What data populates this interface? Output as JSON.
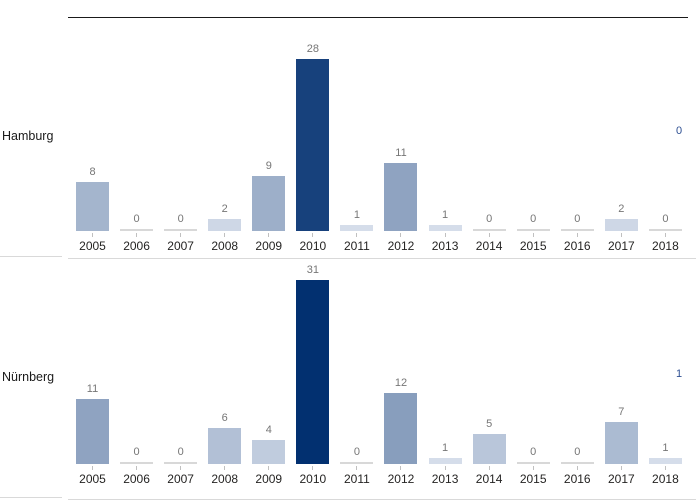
{
  "chart_data": {
    "type": "bar",
    "title": "",
    "categories": [
      "2005",
      "2006",
      "2007",
      "2008",
      "2009",
      "2010",
      "2011",
      "2012",
      "2013",
      "2014",
      "2015",
      "2016",
      "2017",
      "2018"
    ],
    "series": [
      {
        "name": "Hamburg",
        "right_label": "0",
        "values": [
          8,
          0,
          0,
          2,
          9,
          28,
          1,
          11,
          1,
          0,
          0,
          0,
          2,
          0
        ]
      },
      {
        "name": "Nürnberg",
        "right_label": "1",
        "values": [
          11,
          0,
          0,
          6,
          4,
          31,
          0,
          12,
          1,
          5,
          0,
          0,
          7,
          1
        ]
      }
    ],
    "value_labels": "above bars",
    "legend": "none",
    "grid": "off",
    "panel_arrangement": "rows (small multiples), one panel per series",
    "value_axis": {
      "min": 0,
      "max": 31,
      "visible": false
    },
    "color_scale": {
      "description": "bar fill is linear gradient by value",
      "min_value": 0,
      "max_value": 31,
      "min_color": "#dce3ee",
      "max_color": "#023070"
    }
  },
  "colors": {
    "background": "#ffffff",
    "zero_bar": "#d8d8d8",
    "value_label": "#767676",
    "axis_label": "#252423",
    "row_label": "#1a1a1a",
    "right_label": "#2e4f92",
    "divider_dark": "#1a1a1a",
    "divider_light": "#d9d9d9",
    "tick": "#c0c0c0"
  }
}
